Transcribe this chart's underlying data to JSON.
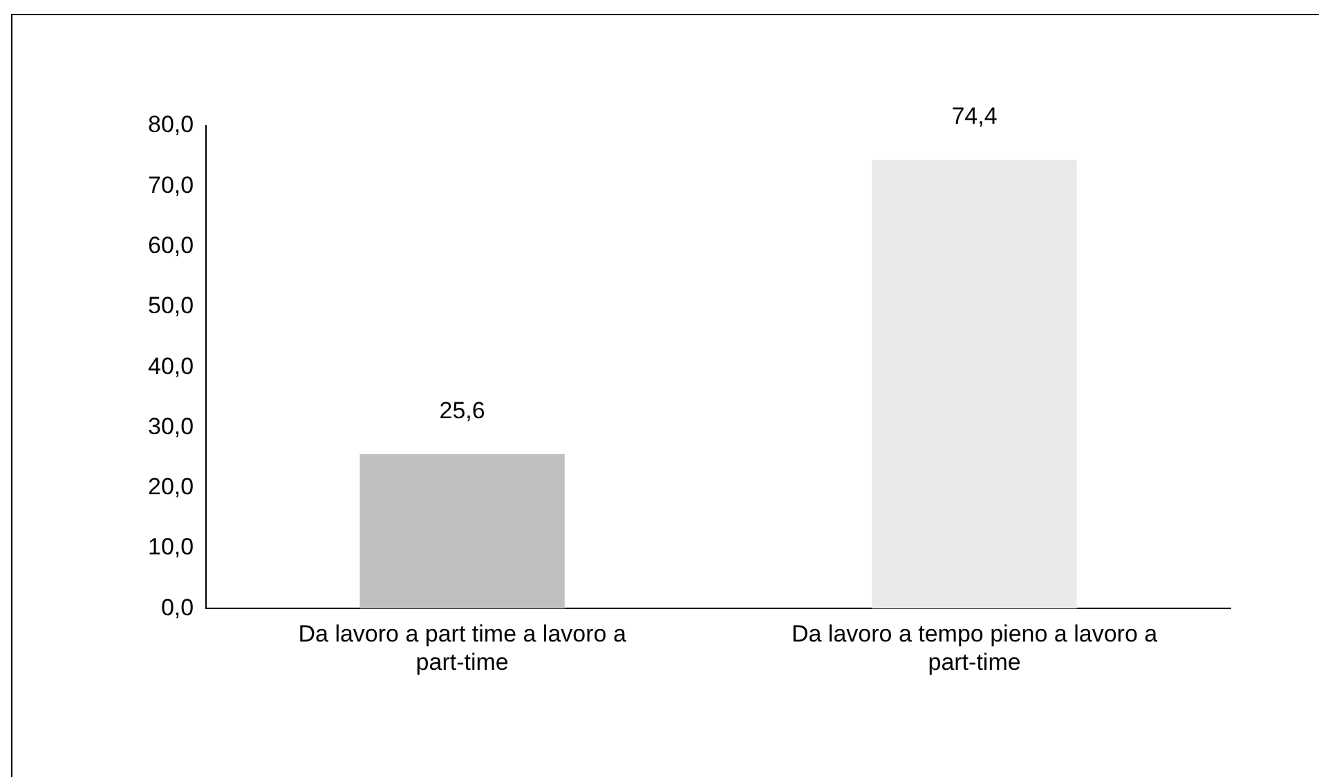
{
  "chart_data": {
    "type": "bar",
    "categories": [
      "Da lavoro a part time a lavoro a part-time",
      "Da lavoro a tempo pieno a lavoro a part-time"
    ],
    "values": [
      25.6,
      74.4
    ],
    "colors": [
      "#c0c0c0",
      "#eaeaea"
    ],
    "value_labels": [
      "25,6",
      "74,4"
    ],
    "ylim": [
      0,
      80
    ],
    "yticks": [
      {
        "value": 0,
        "label": "0,0"
      },
      {
        "value": 10,
        "label": "10,0"
      },
      {
        "value": 20,
        "label": "20,0"
      },
      {
        "value": 30,
        "label": "30,0"
      },
      {
        "value": 40,
        "label": "40,0"
      },
      {
        "value": 50,
        "label": "50,0"
      },
      {
        "value": 60,
        "label": "60,0"
      },
      {
        "value": 70,
        "label": "70,0"
      },
      {
        "value": 80,
        "label": "80,0"
      }
    ],
    "grid": false,
    "legend": false
  }
}
